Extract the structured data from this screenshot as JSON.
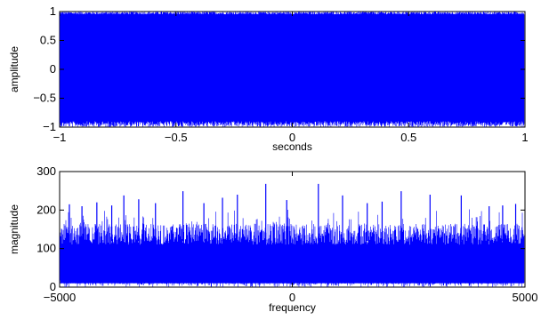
{
  "chart_data": [
    {
      "type": "line",
      "title": "",
      "xlabel": "seconds",
      "ylabel": "amplitude",
      "xlim": [
        -1,
        1
      ],
      "ylim": [
        -1,
        1
      ],
      "x_ticks": [
        -1,
        -0.5,
        0,
        0.5,
        1
      ],
      "x_tick_labels": [
        "−1",
        "−0.5",
        "0",
        "0.5",
        "1"
      ],
      "y_ticks": [
        -1,
        -0.5,
        0,
        0.5,
        1
      ],
      "y_tick_labels": [
        "−1",
        "−0.5",
        "0",
        "0.5",
        "1"
      ],
      "grid": false,
      "series": [
        {
          "color": "#0000ff",
          "description_values": "dense white noise filling the full range",
          "x_range": [
            -1,
            1
          ],
          "y_range": [
            -1,
            1
          ],
          "notable_points": [
            {
              "x": 0.655,
              "y": -0.79
            },
            {
              "x": 0.95,
              "y": 0.93
            }
          ]
        }
      ]
    },
    {
      "type": "line",
      "title": "",
      "xlabel": "frequency",
      "ylabel": "magnitude",
      "xlim": [
        -5000,
        5000
      ],
      "ylim": [
        0,
        300
      ],
      "x_ticks": [
        -5000,
        0,
        5000
      ],
      "x_tick_labels": [
        "−5000",
        "0",
        "5000"
      ],
      "y_ticks": [
        0,
        100,
        200,
        300
      ],
      "y_tick_labels": [
        "0",
        "100",
        "200",
        "300"
      ],
      "grid": false,
      "series": [
        {
          "color": "#0000ff",
          "typical_range": [
            10,
            170
          ],
          "peaks": [
            {
              "x": -4790,
              "y": 215
            },
            {
              "x": -4520,
              "y": 210
            },
            {
              "x": -4200,
              "y": 220
            },
            {
              "x": -3880,
              "y": 212
            },
            {
              "x": -3620,
              "y": 238
            },
            {
              "x": -3300,
              "y": 228
            },
            {
              "x": -2940,
              "y": 218
            },
            {
              "x": -2350,
              "y": 249
            },
            {
              "x": -1900,
              "y": 218
            },
            {
              "x": -1500,
              "y": 232
            },
            {
              "x": -1180,
              "y": 240
            },
            {
              "x": -570,
              "y": 268
            },
            {
              "x": -120,
              "y": 226
            },
            {
              "x": 560,
              "y": 268
            },
            {
              "x": 1080,
              "y": 238
            },
            {
              "x": 1610,
              "y": 218
            },
            {
              "x": 1930,
              "y": 222
            },
            {
              "x": 2340,
              "y": 249
            },
            {
              "x": 2960,
              "y": 240
            },
            {
              "x": 3630,
              "y": 238
            },
            {
              "x": 4230,
              "y": 210
            },
            {
              "x": 4520,
              "y": 212
            },
            {
              "x": 4800,
              "y": 216
            }
          ]
        }
      ]
    }
  ]
}
